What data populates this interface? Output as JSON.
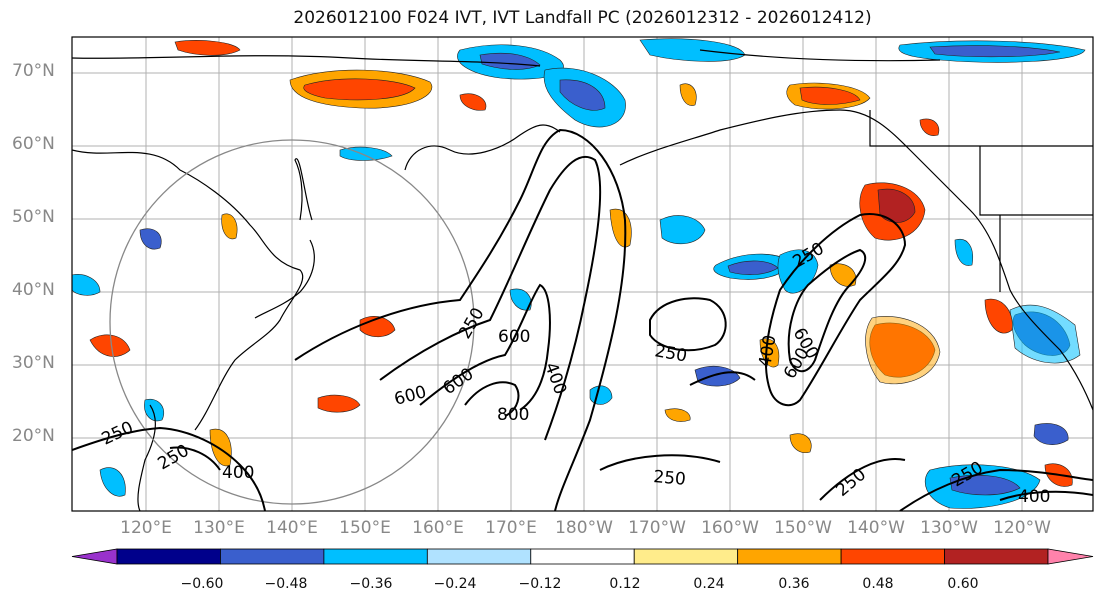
{
  "title": "2026012100 F024 IVT, IVT Landfall PC (2026012312 - 2026012412)",
  "lat_labels": [
    "70°N",
    "60°N",
    "50°N",
    "40°N",
    "30°N",
    "20°N"
  ],
  "lon_labels": [
    "120°E",
    "130°E",
    "140°E",
    "150°E",
    "160°E",
    "170°E",
    "180°W",
    "170°W",
    "160°W",
    "150°W",
    "140°W",
    "130°W",
    "120°W"
  ],
  "contour_labels": [
    "250",
    "250",
    "250",
    "250",
    "250",
    "250",
    "250",
    "400",
    "400",
    "400",
    "400",
    "600",
    "600",
    "600",
    "600",
    "600",
    "800",
    "250"
  ],
  "colorbar": {
    "ticks": [
      "−0.60",
      "−0.48",
      "−0.36",
      "−0.24",
      "−0.12",
      "0.12",
      "0.24",
      "0.36",
      "0.48",
      "0.60"
    ],
    "colors": [
      "#9932cc",
      "#00008b",
      "#3a5fcd",
      "#00bfff",
      "#b0e2ff",
      "#ffffff",
      "#ffec8b",
      "#ffa500",
      "#ff4500",
      "#b22222",
      "#ff82ab"
    ]
  },
  "palette": {
    "neg_light": "#b0e2ff",
    "neg_mid": "#00bfff",
    "neg_dark": "#3a5fcd",
    "pos_light": "#ffec8b",
    "pos_mid": "#ffa500",
    "pos_dark": "#ff4500",
    "pos_darkest": "#b22222"
  }
}
